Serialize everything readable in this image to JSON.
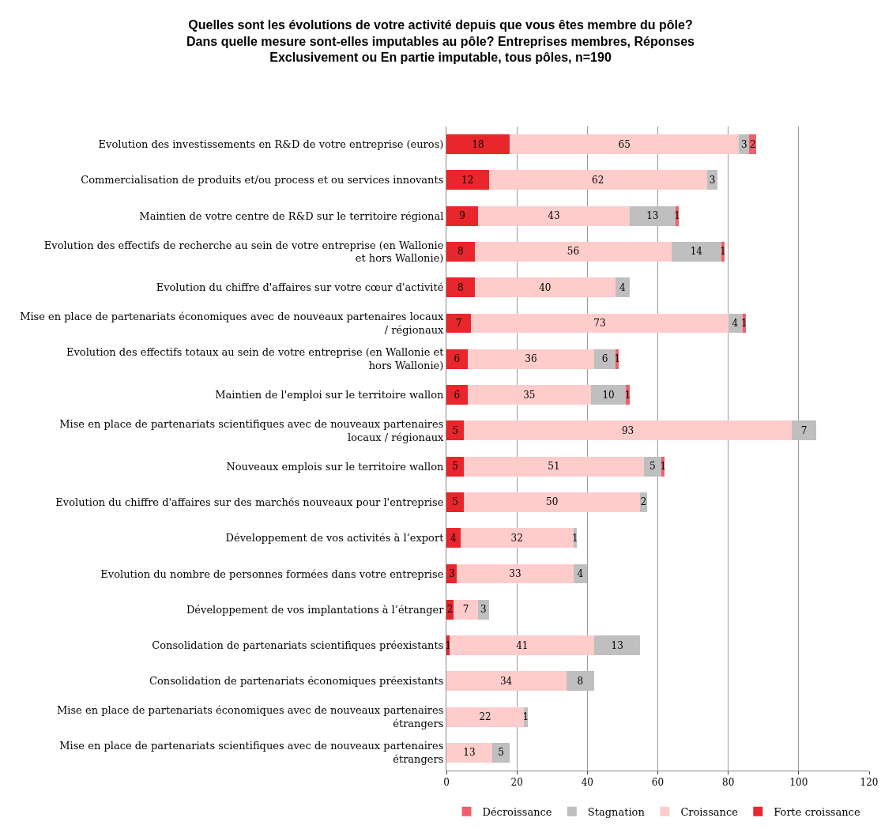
{
  "chart_data": {
    "type": "bar",
    "orientation": "horizontal",
    "stacked": true,
    "title": "Quelles sont les évolutions de votre activité depuis que vous êtes membre du pôle? Dans quelle mesure sont-elles imputables au pôle? Entreprises membres, Réponses Exclusivement ou En partie imputable, tous pôles, n=190",
    "categories": [
      "Evolution des investissements en R&D de votre entreprise (euros)",
      "Commercialisation de produits et/ou process et ou services innovants",
      "Maintien de votre centre de R&D sur le territoire régional",
      "Evolution des effectifs de recherche au sein de votre entreprise (en Wallonie et hors Wallonie)",
      "Evolution du chiffre d'affaires sur votre cœur d'activité",
      "Mise en place de partenariats économiques avec de nouveaux partenaires locaux / régionaux",
      "Evolution des effectifs totaux au sein de votre entreprise (en Wallonie et hors Wallonie)",
      "Maintien de l'emploi sur le territoire wallon",
      "Mise en place de partenariats scientifiques avec de nouveaux partenaires locaux / régionaux",
      "Nouveaux emplois sur le territoire wallon",
      "Evolution du chiffre d'affaires sur des marchés nouveaux pour l'entreprise",
      "Développement de vos activités à l’export",
      "Evolution du nombre de personnes formées dans votre entreprise",
      "Développement de vos implantations à l’étranger",
      "Consolidation de partenariats scientifiques préexistants",
      "Consolidation de partenariats économiques préexistants",
      "Mise en place de partenariats économiques avec de nouveaux partenaires étrangers",
      "Mise en place de partenariats scientifiques avec de nouveaux partenaires étrangers"
    ],
    "series": [
      {
        "name": "Forte croissance",
        "color": "#e8262b",
        "values": [
          18,
          12,
          9,
          8,
          8,
          7,
          6,
          6,
          5,
          5,
          5,
          4,
          3,
          2,
          1,
          null,
          null,
          null
        ]
      },
      {
        "name": "Croissance",
        "color": "#ffcccc",
        "values": [
          65,
          62,
          43,
          56,
          40,
          73,
          36,
          35,
          93,
          51,
          50,
          32,
          33,
          7,
          41,
          34,
          22,
          13
        ]
      },
      {
        "name": "Stagnation",
        "color": "#bfbfbf",
        "values": [
          3,
          3,
          13,
          14,
          4,
          4,
          6,
          10,
          7,
          5,
          2,
          1,
          4,
          3,
          13,
          8,
          1,
          5
        ]
      },
      {
        "name": "Décroissance",
        "color": "#f0606a",
        "values": [
          2,
          null,
          1,
          1,
          null,
          1,
          1,
          1,
          null,
          1,
          null,
          null,
          null,
          null,
          null,
          null,
          null,
          null
        ]
      }
    ],
    "xlim": [
      0,
      120
    ],
    "xticks": [
      0,
      20,
      40,
      60,
      80,
      100,
      120
    ],
    "grid": "x",
    "legend": "bottom",
    "data_labels": true
  }
}
